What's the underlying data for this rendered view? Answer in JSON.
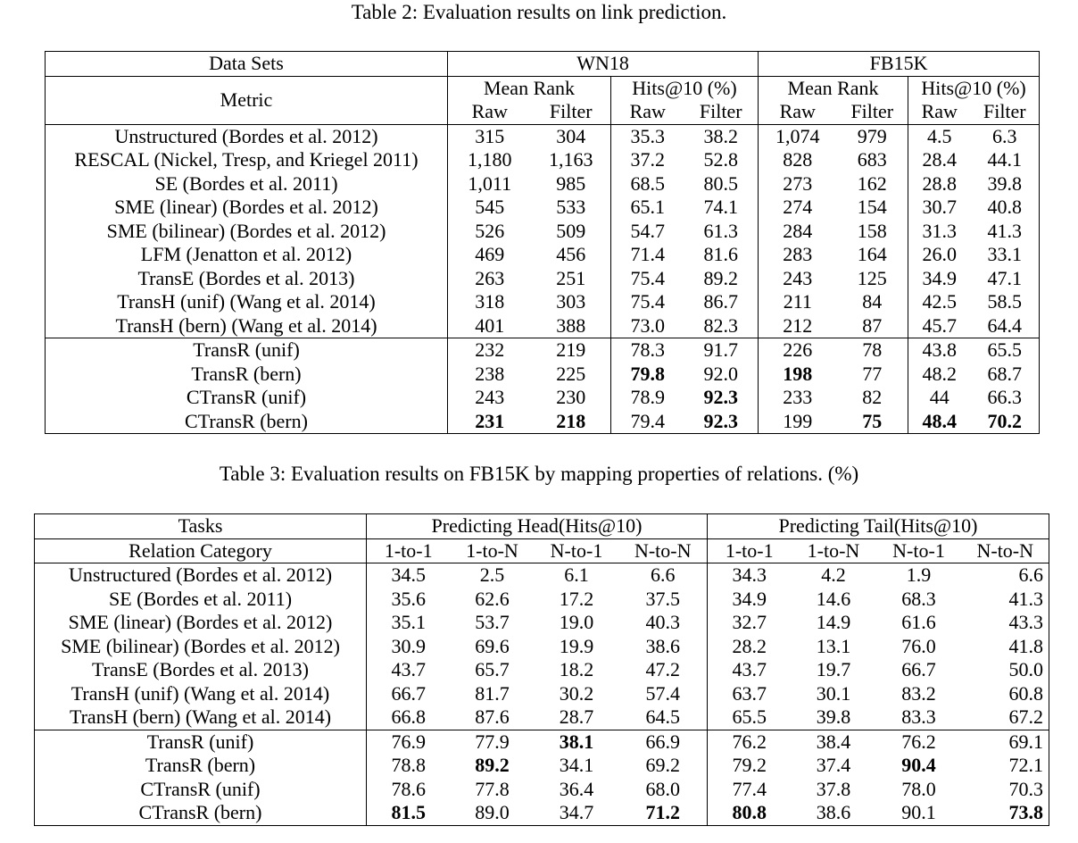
{
  "table2": {
    "caption": "Table 2: Evaluation results on link prediction.",
    "header": {
      "data_sets": "Data Sets",
      "metric": "Metric",
      "wn18": "WN18",
      "fb15k": "FB15K",
      "mean_rank": "Mean Rank",
      "hits10": "Hits@10 (%)",
      "raw": "Raw",
      "filter": "Filter"
    },
    "rows": [
      {
        "method": "Unstructured (Bordes et al. 2012)",
        "v": [
          "315",
          "304",
          "35.3",
          "38.2",
          "1,074",
          "979",
          "4.5",
          "6.3"
        ],
        "bold": []
      },
      {
        "method": "RESCAL (Nickel, Tresp, and Kriegel 2011)",
        "v": [
          "1,180",
          "1,163",
          "37.2",
          "52.8",
          "828",
          "683",
          "28.4",
          "44.1"
        ],
        "bold": []
      },
      {
        "method": "SE (Bordes et al. 2011)",
        "v": [
          "1,011",
          "985",
          "68.5",
          "80.5",
          "273",
          "162",
          "28.8",
          "39.8"
        ],
        "bold": []
      },
      {
        "method": "SME (linear) (Bordes et al. 2012)",
        "v": [
          "545",
          "533",
          "65.1",
          "74.1",
          "274",
          "154",
          "30.7",
          "40.8"
        ],
        "bold": []
      },
      {
        "method": "SME (bilinear) (Bordes et al. 2012)",
        "v": [
          "526",
          "509",
          "54.7",
          "61.3",
          "284",
          "158",
          "31.3",
          "41.3"
        ],
        "bold": []
      },
      {
        "method": "LFM (Jenatton et al. 2012)",
        "v": [
          "469",
          "456",
          "71.4",
          "81.6",
          "283",
          "164",
          "26.0",
          "33.1"
        ],
        "bold": []
      },
      {
        "method": "TransE (Bordes et al. 2013)",
        "v": [
          "263",
          "251",
          "75.4",
          "89.2",
          "243",
          "125",
          "34.9",
          "47.1"
        ],
        "bold": []
      },
      {
        "method": "TransH (unif) (Wang et al. 2014)",
        "v": [
          "318",
          "303",
          "75.4",
          "86.7",
          "211",
          "84",
          "42.5",
          "58.5"
        ],
        "bold": []
      },
      {
        "method": "TransH (bern) (Wang et al. 2014)",
        "v": [
          "401",
          "388",
          "73.0",
          "82.3",
          "212",
          "87",
          "45.7",
          "64.4"
        ],
        "bold": []
      },
      {
        "method": "TransR (unif)",
        "v": [
          "232",
          "219",
          "78.3",
          "91.7",
          "226",
          "78",
          "43.8",
          "65.5"
        ],
        "bold": [],
        "group_start": true
      },
      {
        "method": "TransR (bern)",
        "v": [
          "238",
          "225",
          "79.8",
          "92.0",
          "198",
          "77",
          "48.2",
          "68.7"
        ],
        "bold": [
          2,
          4
        ]
      },
      {
        "method": "CTransR (unif)",
        "v": [
          "243",
          "230",
          "78.9",
          "92.3",
          "233",
          "82",
          "44",
          "66.3"
        ],
        "bold": [
          3
        ]
      },
      {
        "method": "CTransR (bern)",
        "v": [
          "231",
          "218",
          "79.4",
          "92.3",
          "199",
          "75",
          "48.4",
          "70.2"
        ],
        "bold": [
          0,
          1,
          3,
          5,
          6,
          7
        ]
      }
    ]
  },
  "table3": {
    "caption": "Table 3: Evaluation results on FB15K by mapping properties of relations. (%)",
    "header": {
      "tasks": "Tasks",
      "relation_category": "Relation Category",
      "head": "Predicting Head(Hits@10)",
      "tail": "Predicting Tail(Hits@10)",
      "cats": [
        "1-to-1",
        "1-to-N",
        "N-to-1",
        "N-to-N",
        "1-to-1",
        "1-to-N",
        "N-to-1",
        "N-to-N"
      ]
    },
    "rows": [
      {
        "method": "Unstructured (Bordes et al. 2012)",
        "v": [
          "34.5",
          "2.5",
          "6.1",
          "6.6",
          "34.3",
          "4.2",
          "1.9",
          "6.6"
        ],
        "bold": []
      },
      {
        "method": "SE (Bordes et al. 2011)",
        "v": [
          "35.6",
          "62.6",
          "17.2",
          "37.5",
          "34.9",
          "14.6",
          "68.3",
          "41.3"
        ],
        "bold": []
      },
      {
        "method": "SME (linear) (Bordes et al. 2012)",
        "v": [
          "35.1",
          "53.7",
          "19.0",
          "40.3",
          "32.7",
          "14.9",
          "61.6",
          "43.3"
        ],
        "bold": []
      },
      {
        "method": "SME (bilinear) (Bordes et al. 2012)",
        "v": [
          "30.9",
          "69.6",
          "19.9",
          "38.6",
          "28.2",
          "13.1",
          "76.0",
          "41.8"
        ],
        "bold": []
      },
      {
        "method": "TransE (Bordes et al. 2013)",
        "v": [
          "43.7",
          "65.7",
          "18.2",
          "47.2",
          "43.7",
          "19.7",
          "66.7",
          "50.0"
        ],
        "bold": []
      },
      {
        "method": "TransH (unif) (Wang et al. 2014)",
        "v": [
          "66.7",
          "81.7",
          "30.2",
          "57.4",
          "63.7",
          "30.1",
          "83.2",
          "60.8"
        ],
        "bold": []
      },
      {
        "method": "TransH (bern) (Wang et al. 2014)",
        "v": [
          "66.8",
          "87.6",
          "28.7",
          "64.5",
          "65.5",
          "39.8",
          "83.3",
          "67.2"
        ],
        "bold": []
      },
      {
        "method": "TransR (unif)",
        "v": [
          "76.9",
          "77.9",
          "38.1",
          "66.9",
          "76.2",
          "38.4",
          "76.2",
          "69.1"
        ],
        "bold": [
          2
        ],
        "group_start": true
      },
      {
        "method": "TransR (bern)",
        "v": [
          "78.8",
          "89.2",
          "34.1",
          "69.2",
          "79.2",
          "37.4",
          "90.4",
          "72.1"
        ],
        "bold": [
          1,
          6
        ]
      },
      {
        "method": "CTransR (unif)",
        "v": [
          "78.6",
          "77.8",
          "36.4",
          "68.0",
          "77.4",
          "37.8",
          "78.0",
          "70.3"
        ],
        "bold": []
      },
      {
        "method": "CTransR (bern)",
        "v": [
          "81.5",
          "89.0",
          "34.7",
          "71.2",
          "80.8",
          "38.6",
          "90.1",
          "73.8"
        ],
        "bold": [
          0,
          3,
          4,
          7
        ]
      }
    ]
  }
}
